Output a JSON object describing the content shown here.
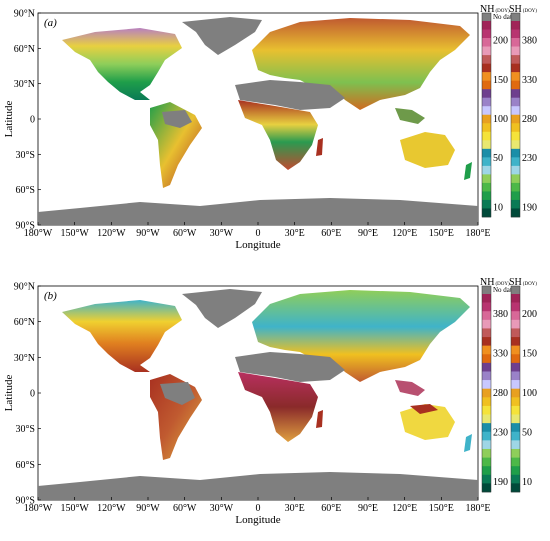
{
  "colors": {
    "nodata": "#7f7f7f",
    "ocean": "#ffffff",
    "colorbar": [
      "#004a3a",
      "#0a7a55",
      "#1f9e4a",
      "#4db848",
      "#8fce5a",
      "#9ed6e6",
      "#3fb3c9",
      "#1b8ea8",
      "#e8e870",
      "#f5e33a",
      "#f0c020",
      "#e8a020",
      "#c8c8ff",
      "#9a82c8",
      "#6e3f8e",
      "#e06a10",
      "#f09020",
      "#a83020",
      "#c05a5a",
      "#e89ab8",
      "#d86898",
      "#b83470",
      "#a02458"
    ]
  },
  "axis_labels": {
    "x": "Longitude",
    "y": "Latitude"
  },
  "lon_ticks": [
    "180°W",
    "150°W",
    "120°W",
    "90°W",
    "60°W",
    "30°W",
    "0",
    "30°E",
    "60°E",
    "90°E",
    "120°E",
    "150°E",
    "180°E"
  ],
  "lat_ticks": [
    "90°N",
    "60°N",
    "30°N",
    "0",
    "30°S",
    "60°S",
    "90°S"
  ],
  "panels": [
    {
      "label": "(a)",
      "colorbars": [
        {
          "title": "NH",
          "unit": "(DOY)",
          "nodata_label": "No data",
          "ticks": [
            "200",
            "150",
            "100",
            "50",
            "10"
          ]
        },
        {
          "title": "SH",
          "unit": "(DOY)",
          "nodata_label": "",
          "ticks": [
            "380",
            "330",
            "280",
            "230",
            "190"
          ]
        }
      ]
    },
    {
      "label": "(b)",
      "colorbars": [
        {
          "title": "NH",
          "unit": "(DOY)",
          "nodata_label": "No data",
          "ticks": [
            "380",
            "330",
            "280",
            "230",
            "190"
          ]
        },
        {
          "title": "SH",
          "unit": "(DOY)",
          "nodata_label": "",
          "ticks": [
            "200",
            "150",
            "100",
            "50",
            "10"
          ]
        }
      ]
    }
  ]
}
